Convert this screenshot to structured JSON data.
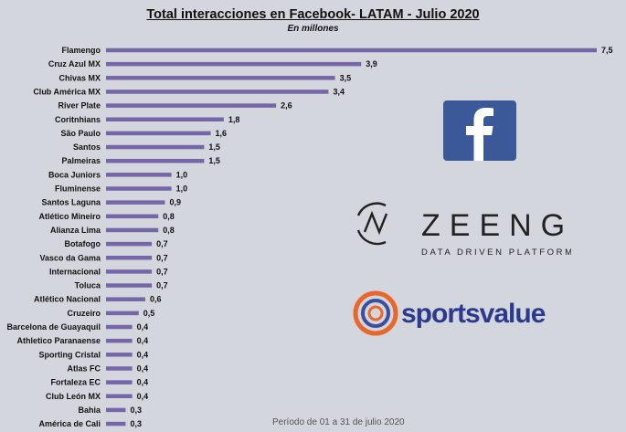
{
  "title": "Total interacciones en Facebook- LATAM - Julio 2020",
  "subtitle": "En millones",
  "footnote": "Período de 01 a 31 de julio 2020",
  "logos": {
    "facebook": {
      "icon": "facebook-f-icon",
      "color": "#3b5998"
    },
    "zeeng": {
      "name": "ZEENG",
      "tagline": "DATA DRIVEN PLATFORM"
    },
    "sportsvalue": {
      "name": "sportsvalue",
      "accent": "#e8672a",
      "brand": "#2b3a8c"
    }
  },
  "colors": {
    "bar": "#7566a8"
  },
  "chart_data": {
    "type": "bar",
    "orientation": "horizontal",
    "title": "Total interacciones en Facebook- LATAM - Julio 2020",
    "subtitle": "En millones",
    "xlabel": "",
    "ylabel": "",
    "xlim": [
      0,
      7.5
    ],
    "grid": false,
    "categories": [
      "Flamengo",
      "Cruz Azul MX",
      "Chivas MX",
      "Club América MX",
      "River Plate",
      "Coritnhians",
      "São Paulo",
      "Santos",
      "Palmeiras",
      "Boca Juniors",
      "Fluminense",
      "Santos Laguna",
      "Atlético Mineiro",
      "Alianza Lima",
      "Botafogo",
      "Vasco da Gama",
      "Internacional",
      "Toluca",
      "Atlético Nacional",
      "Cruzeiro",
      "Barcelona de Guayaquil",
      "Athletico Paranaense",
      "Sporting Cristal",
      "Atlas FC",
      "Fortaleza EC",
      "Club León MX",
      "Bahia",
      "América de Cali"
    ],
    "values": [
      7.5,
      3.9,
      3.5,
      3.4,
      2.6,
      1.8,
      1.6,
      1.5,
      1.5,
      1.0,
      1.0,
      0.9,
      0.8,
      0.8,
      0.7,
      0.7,
      0.7,
      0.7,
      0.6,
      0.5,
      0.4,
      0.4,
      0.4,
      0.4,
      0.4,
      0.4,
      0.3,
      0.3
    ],
    "labels": [
      "7,5",
      "3,9",
      "3,5",
      "3,4",
      "2,6",
      "1,8",
      "1,6",
      "1,5",
      "1,5",
      "1,0",
      "1,0",
      "0,9",
      "0,8",
      "0,8",
      "0,7",
      "0,7",
      "0,7",
      "0,7",
      "0,6",
      "0,5",
      "0,4",
      "0,4",
      "0,4",
      "0,4",
      "0,4",
      "0,4",
      "0,3",
      "0,3"
    ]
  }
}
